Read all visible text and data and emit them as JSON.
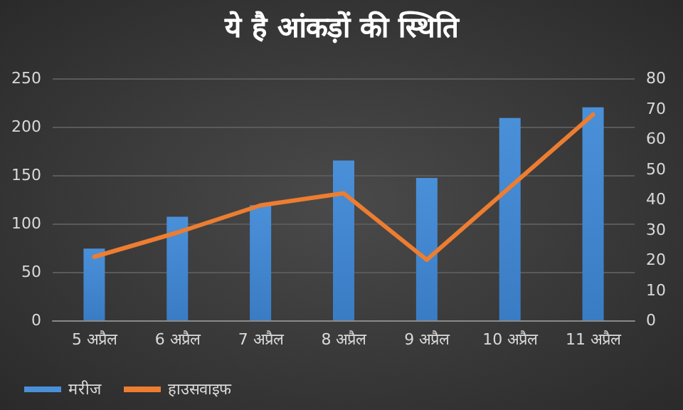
{
  "chart_data": {
    "type": "bar",
    "title": "ये है आंकड़ों की स्थिति",
    "categories": [
      "5 अप्रैल",
      "6 अप्रैल",
      "7 अप्रैल",
      "8 अप्रैल",
      "9 अप्रैल",
      "10 अप्रैल",
      "11 अप्रैल"
    ],
    "series": [
      {
        "name": "मरीज",
        "color": "#4a90d9",
        "values": [
          74,
          107,
          119,
          165,
          147,
          209,
          220
        ]
      },
      {
        "name": "हाउसवाइफ",
        "type": "line",
        "axis": "y2",
        "color": "#ed7d31",
        "values": [
          21,
          29,
          38,
          42,
          20,
          44,
          68
        ]
      }
    ],
    "ylim": [
      0,
      250
    ],
    "yticks": [
      0,
      50,
      100,
      150,
      200,
      250
    ],
    "y2lim": [
      0,
      80
    ],
    "y2ticks": [
      0,
      10,
      20,
      30,
      40,
      50,
      60,
      70,
      80
    ],
    "grid": "y",
    "legend": "bottom left",
    "marker": "none"
  }
}
